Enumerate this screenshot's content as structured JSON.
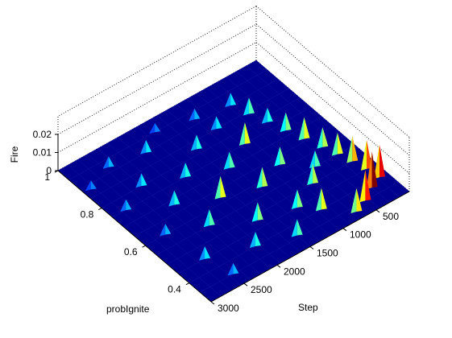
{
  "chart_data": {
    "type": "surface3d",
    "xlabel": "Step",
    "ylabel": "probIgnite",
    "zlabel": "Fire",
    "x_ticks": [
      500,
      1000,
      1500,
      2000,
      2500,
      3000
    ],
    "y_ticks": [
      0.4,
      0.6,
      0.8,
      1
    ],
    "z_ticks": [
      0,
      0.01,
      0.02
    ],
    "x_tick_labels": [
      "500",
      "1000",
      "1500",
      "2000",
      "2500",
      "3000"
    ],
    "y_tick_labels": [
      "0.4",
      "0.6",
      "0.8",
      "1"
    ],
    "z_tick_labels": [
      "0",
      "0.01",
      "0.02"
    ],
    "xlim": [
      0,
      3000
    ],
    "ylim": [
      0.3,
      1
    ],
    "zlim": [
      0,
      0.03
    ],
    "grid": true,
    "colormap": "jet",
    "colors": {
      "floor": "#00008f",
      "low": "#0000ff",
      "mid": "#00ffff",
      "high": "#ffff00",
      "peak": "#ff0000"
    },
    "peaks": [
      {
        "step": 120,
        "prob": 0.4,
        "fire": 0.018
      },
      {
        "step": 150,
        "prob": 0.45,
        "fire": 0.016
      },
      {
        "step": 200,
        "prob": 0.5,
        "fire": 0.014
      },
      {
        "step": 260,
        "prob": 0.55,
        "fire": 0.012
      },
      {
        "step": 320,
        "prob": 0.6,
        "fire": 0.011
      },
      {
        "step": 400,
        "prob": 0.66,
        "fire": 0.012
      },
      {
        "step": 480,
        "prob": 0.72,
        "fire": 0.01
      },
      {
        "step": 560,
        "prob": 0.78,
        "fire": 0.008
      },
      {
        "step": 640,
        "prob": 0.84,
        "fire": 0.009
      },
      {
        "step": 720,
        "prob": 0.9,
        "fire": 0.007
      },
      {
        "step": 300,
        "prob": 0.38,
        "fire": 0.02
      },
      {
        "step": 500,
        "prob": 0.35,
        "fire": 0.017
      },
      {
        "step": 700,
        "prob": 0.33,
        "fire": 0.013
      },
      {
        "step": 800,
        "prob": 0.5,
        "fire": 0.011
      },
      {
        "step": 900,
        "prob": 0.62,
        "fire": 0.01
      },
      {
        "step": 1000,
        "prob": 0.75,
        "fire": 0.012
      },
      {
        "step": 1100,
        "prob": 0.85,
        "fire": 0.007
      },
      {
        "step": 1000,
        "prob": 0.4,
        "fire": 0.012
      },
      {
        "step": 1200,
        "prob": 0.45,
        "fire": 0.01
      },
      {
        "step": 1300,
        "prob": 0.58,
        "fire": 0.011
      },
      {
        "step": 1400,
        "prob": 0.7,
        "fire": 0.009
      },
      {
        "step": 1500,
        "prob": 0.82,
        "fire": 0.008
      },
      {
        "step": 1500,
        "prob": 0.36,
        "fire": 0.009
      },
      {
        "step": 1700,
        "prob": 0.48,
        "fire": 0.01
      },
      {
        "step": 1800,
        "prob": 0.62,
        "fire": 0.012
      },
      {
        "step": 1900,
        "prob": 0.75,
        "fire": 0.008
      },
      {
        "step": 2000,
        "prob": 0.9,
        "fire": 0.007
      },
      {
        "step": 2000,
        "prob": 0.4,
        "fire": 0.008
      },
      {
        "step": 2200,
        "prob": 0.55,
        "fire": 0.009
      },
      {
        "step": 2300,
        "prob": 0.68,
        "fire": 0.008
      },
      {
        "step": 2400,
        "prob": 0.8,
        "fire": 0.007
      },
      {
        "step": 2500,
        "prob": 0.92,
        "fire": 0.006
      },
      {
        "step": 2600,
        "prob": 0.45,
        "fire": 0.007
      },
      {
        "step": 2700,
        "prob": 0.6,
        "fire": 0.006
      },
      {
        "step": 2800,
        "prob": 0.75,
        "fire": 0.006
      },
      {
        "step": 2900,
        "prob": 0.88,
        "fire": 0.005
      },
      {
        "step": 1200,
        "prob": 0.92,
        "fire": 0.006
      },
      {
        "step": 1700,
        "prob": 0.95,
        "fire": 0.005
      },
      {
        "step": 600,
        "prob": 0.55,
        "fire": 0.009
      },
      {
        "step": 2500,
        "prob": 0.35,
        "fire": 0.006
      }
    ]
  }
}
